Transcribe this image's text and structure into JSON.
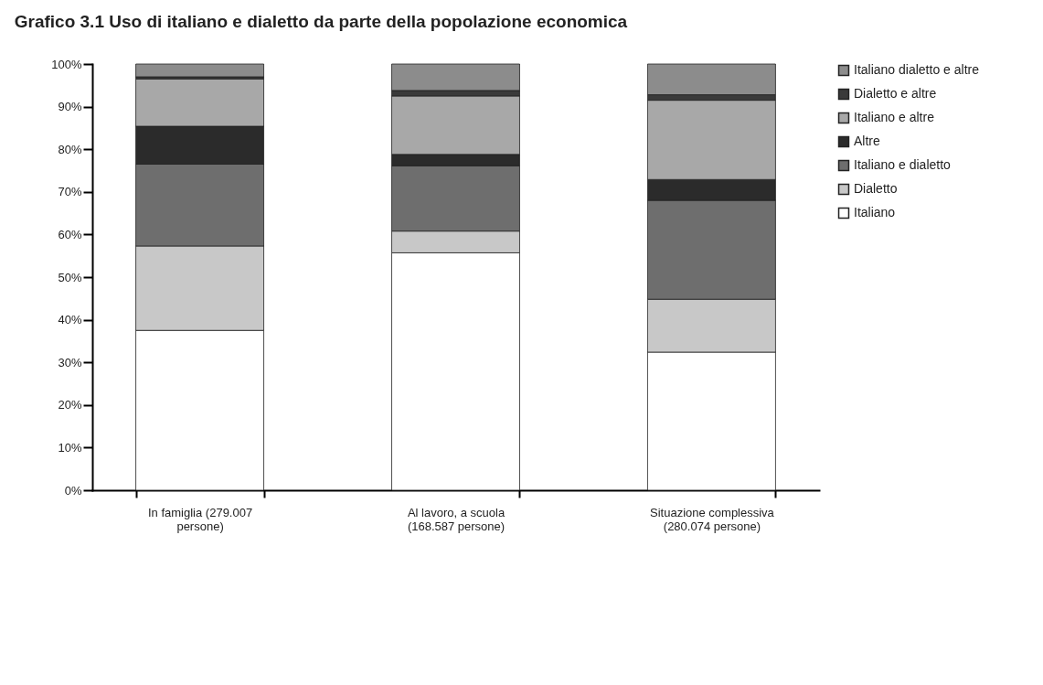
{
  "chart_data": {
    "type": "bar",
    "stacked": true,
    "title": "Grafico 3.1    Uso di italiano e dialetto da parte della popolazione economica",
    "categories": [
      "In famiglia (279.007 persone)",
      "Al lavoro, a scuola (168.587 persone)",
      "Situazione complessiva (280.074 persone)"
    ],
    "series": [
      {
        "name": "Italiano",
        "color": "#ffffff",
        "values": [
          37.5,
          55.7,
          32.4
        ]
      },
      {
        "name": "Dialetto",
        "color": "#c8c8c8",
        "values": [
          19.8,
          5.1,
          12.4
        ]
      },
      {
        "name": "Italiano e dialetto",
        "color": "#6e6e6e",
        "values": [
          19.2,
          15.3,
          23.2
        ]
      },
      {
        "name": "Altre",
        "color": "#2b2b2b",
        "values": [
          8.9,
          2.7,
          4.9
        ]
      },
      {
        "name": "Italiano e altre",
        "color": "#a8a8a8",
        "values": [
          11.1,
          13.7,
          18.6
        ]
      },
      {
        "name": "Dialetto e altre",
        "color": "#3a3a3a",
        "values": [
          0.5,
          1.3,
          1.3
        ]
      },
      {
        "name": "Italiano dialetto e altre",
        "color": "#8c8c8c",
        "values": [
          3.0,
          6.2,
          7.2
        ]
      }
    ],
    "ylim": [
      0,
      100
    ],
    "yticks": [
      {
        "value": 0,
        "label": "0%"
      },
      {
        "value": 10,
        "label": "10%"
      },
      {
        "value": 20,
        "label": "20%"
      },
      {
        "value": 30,
        "label": "30%"
      },
      {
        "value": 40,
        "label": "40%"
      },
      {
        "value": 50,
        "label": "50%"
      },
      {
        "value": 60,
        "label": "60%"
      },
      {
        "value": 70,
        "label": "70%"
      },
      {
        "value": 80,
        "label": "80%"
      },
      {
        "value": 90,
        "label": "90%"
      },
      {
        "value": 100,
        "label": "100%"
      }
    ],
    "grid": false,
    "legend": "right"
  }
}
